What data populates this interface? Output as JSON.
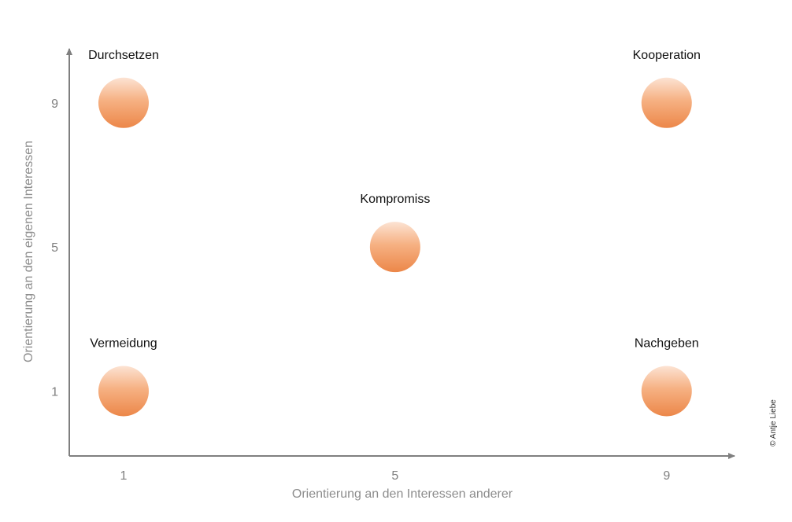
{
  "chart_data": {
    "type": "scatter",
    "xlabel": "Orientierung an den Interessen anderer",
    "ylabel": "Orientierung an den eigenen Interessen",
    "xlim": [
      0.2,
      10
    ],
    "ylim": [
      -0.8,
      10.5
    ],
    "x_ticks": [
      "1",
      "5",
      "9"
    ],
    "y_ticks": [
      "1",
      "5",
      "9"
    ],
    "grid": false,
    "legend": "none",
    "points": [
      {
        "label": "Durchsetzen",
        "x": 1,
        "y": 9
      },
      {
        "label": "Kooperation",
        "x": 9,
        "y": 9
      },
      {
        "label": "Kompromiss",
        "x": 5,
        "y": 5
      },
      {
        "label": "Vermeidung",
        "x": 1,
        "y": 1
      },
      {
        "label": "Nachgeben",
        "x": 9,
        "y": 1
      }
    ]
  },
  "credit": "© Antje Liebe",
  "colors": {
    "axis": "#7f7f7f",
    "marker_light": "#fce3d3",
    "marker_mid": "#f6b183",
    "marker_dark": "#ec8749"
  }
}
